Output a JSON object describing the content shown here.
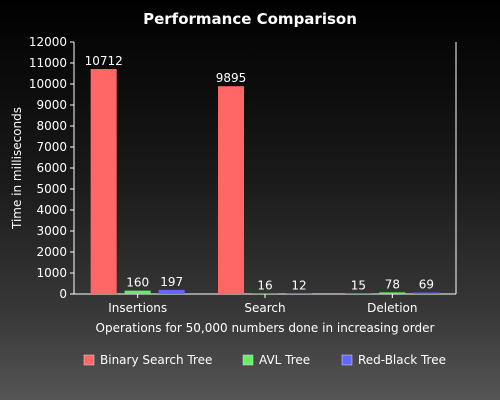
{
  "chart_data": {
    "type": "bar",
    "title": "Performance Comparison",
    "xlabel": "Operations for 50,000 numbers done in increasing order",
    "ylabel": "Time in milliseconds",
    "ylim": [
      0,
      12000
    ],
    "yticks": [
      0,
      1000,
      2000,
      3000,
      4000,
      5000,
      6000,
      7000,
      8000,
      9000,
      10000,
      11000,
      12000
    ],
    "categories": [
      "Insertions",
      "Search",
      "Deletion"
    ],
    "series": [
      {
        "name": "Binary Search Tree",
        "color": "#ff6666",
        "values": [
          10712,
          9895,
          15
        ]
      },
      {
        "name": "AVL Tree",
        "color": "#66ee66",
        "values": [
          160,
          16,
          78
        ]
      },
      {
        "name": "Red-Black Tree",
        "color": "#6666ff",
        "values": [
          197,
          12,
          69
        ]
      }
    ],
    "grid": false,
    "legend_position": "bottom"
  }
}
